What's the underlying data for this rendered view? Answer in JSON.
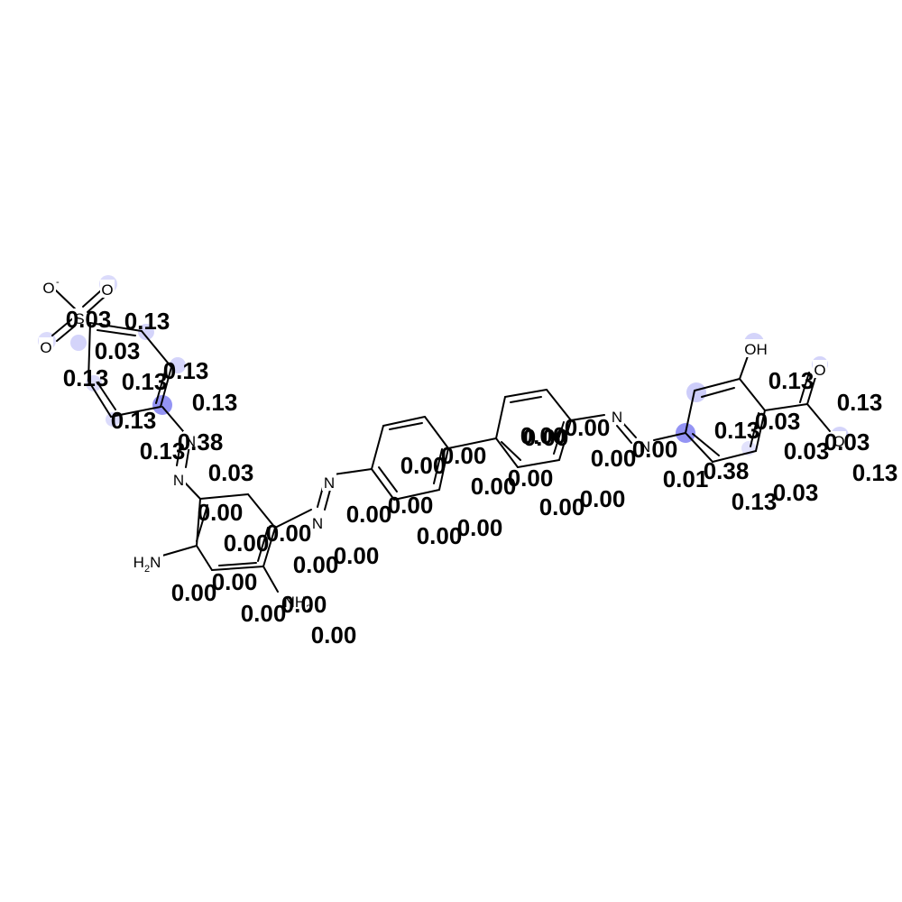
{
  "highlight_color": "#7070f0",
  "atoms": [
    {
      "text": "O",
      "charge": "-"
    },
    {
      "text": "O"
    },
    {
      "text": "O"
    },
    {
      "text": "S"
    },
    {
      "text": "N"
    },
    {
      "text": "N"
    },
    {
      "text": "N"
    },
    {
      "text": "N"
    },
    {
      "text": "H2N"
    },
    {
      "text": "NH2"
    },
    {
      "text": "N"
    },
    {
      "text": "N"
    },
    {
      "text": "OH"
    },
    {
      "text": "O"
    },
    {
      "text": "O"
    }
  ],
  "scores": [
    "0.03",
    "0.13",
    "0.03",
    "0.13",
    "0.13",
    "0.13",
    "0.13",
    "0.13",
    "0.13",
    "0.38",
    "0.03",
    "0.00",
    "0.00",
    "0.00",
    "0.00",
    "0.00",
    "0.00",
    "0.00",
    "0.00",
    "0.00",
    "0.00",
    "0.00",
    "0.00",
    "0.00",
    "0.00",
    "0.00",
    "0.00",
    "0.00",
    "0.00",
    "0.00",
    "0.00",
    "0.00",
    "0.00",
    "0.00",
    "0.00",
    "0.00",
    "0.13",
    "0.13",
    "0.03",
    "0.13",
    "0.03",
    "0.03",
    "0.13",
    "0.01",
    "0.38",
    "0.13",
    "0.03"
  ]
}
